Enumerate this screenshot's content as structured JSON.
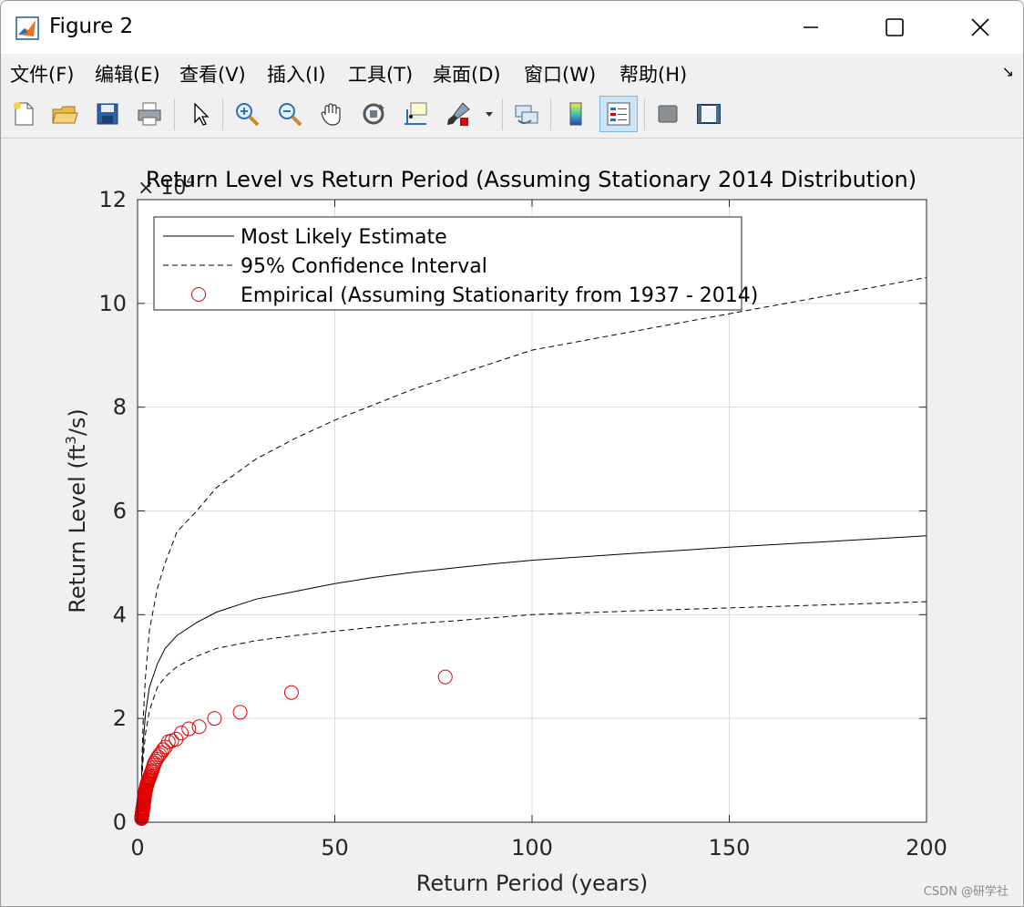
{
  "window": {
    "title": "Figure 2",
    "menu": [
      "文件(F)",
      "编辑(E)",
      "查看(V)",
      "插入(I)",
      "工具(T)",
      "桌面(D)",
      "窗口(W)",
      "帮助(H)"
    ]
  },
  "toolbar": {
    "buttons": [
      "new-figure",
      "open-file",
      "save",
      "print",
      "edit-plot",
      "zoom-in",
      "zoom-out",
      "pan",
      "rotate-3d",
      "data-cursor",
      "brush",
      "link-plot",
      "colorbar",
      "legend",
      "hide-plot-tools",
      "show-plot-tools"
    ]
  },
  "chart_data": {
    "type": "line",
    "title": "Return Level vs Return Period (Assuming Stationary 2014 Distribution)",
    "xlabel": "Return Period (years)",
    "ylabel_main": "Return Level (ft",
    "ylabel_sup": "3",
    "ylabel_tail": "/s)",
    "y_exponent_label": "× 10",
    "y_exponent_power": "4",
    "xlim": [
      0,
      200
    ],
    "ylim": [
      0,
      12
    ],
    "y_scale_factor": 10000,
    "xticks": [
      0,
      50,
      100,
      150,
      200
    ],
    "yticks": [
      0,
      2,
      4,
      6,
      8,
      10,
      12
    ],
    "grid": true,
    "legend_position": "top-left",
    "series": [
      {
        "name": "Most Likely Estimate",
        "style": "solid",
        "color": "#000000",
        "x": [
          1.01,
          1.5,
          2,
          3,
          5,
          7,
          10,
          15,
          20,
          30,
          40,
          50,
          60,
          70,
          80,
          90,
          100,
          125,
          150,
          175,
          200
        ],
        "y": [
          0.9,
          1.6,
          2.1,
          2.6,
          3.05,
          3.35,
          3.6,
          3.85,
          4.05,
          4.3,
          4.45,
          4.6,
          4.72,
          4.82,
          4.9,
          4.98,
          5.05,
          5.18,
          5.3,
          5.41,
          5.52
        ]
      },
      {
        "name": "95% Confidence Interval",
        "style": "dashed",
        "color": "#000000",
        "x": [
          1.01,
          1.5,
          2,
          3,
          5,
          7,
          10,
          15,
          20,
          30,
          40,
          50,
          60,
          70,
          80,
          90,
          100,
          125,
          150,
          175,
          200
        ],
        "y": [
          1.0,
          2.1,
          2.8,
          3.7,
          4.5,
          5.0,
          5.6,
          6.0,
          6.45,
          7.0,
          7.4,
          7.75,
          8.05,
          8.35,
          8.6,
          8.85,
          9.1,
          9.45,
          9.8,
          10.15,
          10.5
        ]
      },
      {
        "name": "",
        "style": "dashed",
        "color": "#000000",
        "x": [
          1.01,
          1.5,
          2,
          3,
          5,
          7,
          10,
          15,
          20,
          30,
          40,
          50,
          60,
          70,
          80,
          90,
          100,
          125,
          150,
          175,
          200
        ],
        "y": [
          0.8,
          1.3,
          1.7,
          2.15,
          2.6,
          2.8,
          3.0,
          3.2,
          3.35,
          3.5,
          3.6,
          3.68,
          3.76,
          3.83,
          3.88,
          3.94,
          4.0,
          4.07,
          4.13,
          4.19,
          4.25
        ]
      },
      {
        "name": "Empirical (Assuming Stationarity from 1937 - 2014)",
        "style": "marker",
        "color": "#e00000",
        "x": [
          78,
          39,
          26,
          19.5,
          15.6,
          13,
          11.1,
          9.75,
          8.67,
          7.8,
          7.09,
          6.5,
          6,
          5.57,
          5.2,
          4.88,
          4.59,
          4.33,
          4.11,
          3.9,
          3.71,
          3.55,
          3.39,
          3.25,
          3.12,
          3,
          2.89,
          2.79,
          2.69,
          2.6,
          2.52,
          2.44,
          2.36,
          2.29,
          2.23,
          2.17,
          2.11,
          2.05,
          2,
          1.95,
          1.9,
          1.86,
          1.81,
          1.77,
          1.73,
          1.7,
          1.66,
          1.63,
          1.59,
          1.56,
          1.53,
          1.5,
          1.47,
          1.44,
          1.42,
          1.39,
          1.37,
          1.34,
          1.32,
          1.3,
          1.28,
          1.26,
          1.24,
          1.22,
          1.2,
          1.18,
          1.16,
          1.15,
          1.13,
          1.11,
          1.1,
          1.08,
          1.07,
          1.05,
          1.04,
          1.03,
          1.01
        ],
        "y": [
          2.8,
          2.5,
          2.12,
          2.0,
          1.84,
          1.8,
          1.72,
          1.6,
          1.57,
          1.55,
          1.45,
          1.4,
          1.34,
          1.3,
          1.26,
          1.22,
          1.18,
          1.14,
          1.1,
          1.05,
          1.0,
          0.97,
          0.94,
          0.91,
          0.88,
          0.86,
          0.84,
          0.82,
          0.8,
          0.78,
          0.76,
          0.74,
          0.72,
          0.7,
          0.68,
          0.66,
          0.64,
          0.62,
          0.6,
          0.58,
          0.56,
          0.54,
          0.52,
          0.5,
          0.48,
          0.46,
          0.44,
          0.42,
          0.4,
          0.38,
          0.36,
          0.34,
          0.32,
          0.3,
          0.29,
          0.28,
          0.27,
          0.26,
          0.25,
          0.24,
          0.23,
          0.22,
          0.21,
          0.2,
          0.19,
          0.18,
          0.17,
          0.16,
          0.15,
          0.14,
          0.13,
          0.12,
          0.11,
          0.1,
          0.09,
          0.08,
          0.07
        ]
      }
    ],
    "legend": [
      {
        "label": "Most Likely Estimate",
        "style": "solid"
      },
      {
        "label": "95% Confidence Interval",
        "style": "dashed"
      },
      {
        "label": "Empirical (Assuming Stationarity from 1937 - 2014)",
        "style": "marker"
      }
    ]
  },
  "watermark": "CSDN @研学社"
}
